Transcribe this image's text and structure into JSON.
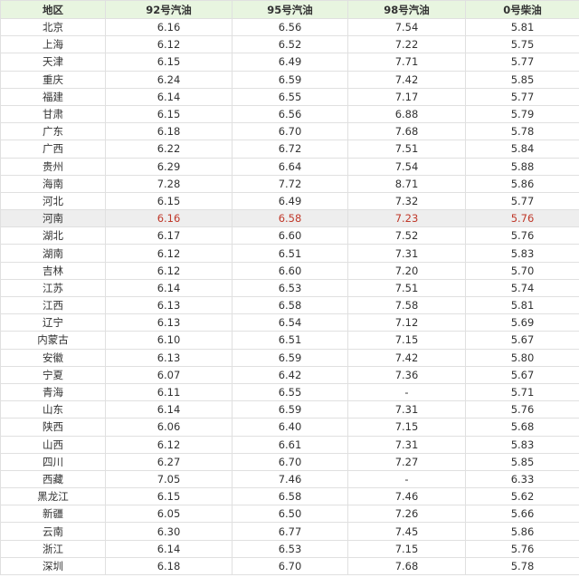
{
  "table": {
    "headers": [
      "地区",
      "92号汽油",
      "95号汽油",
      "98号汽油",
      "0号柴油"
    ],
    "highlight_color": "#c0392b",
    "header_bg": "#e8f5e0",
    "highlight_row": "河南",
    "rows": [
      {
        "region": "北京",
        "p92": "6.16",
        "p95": "6.56",
        "p98": "7.54",
        "p0": "5.81"
      },
      {
        "region": "上海",
        "p92": "6.12",
        "p95": "6.52",
        "p98": "7.22",
        "p0": "5.75"
      },
      {
        "region": "天津",
        "p92": "6.15",
        "p95": "6.49",
        "p98": "7.71",
        "p0": "5.77"
      },
      {
        "region": "重庆",
        "p92": "6.24",
        "p95": "6.59",
        "p98": "7.42",
        "p0": "5.85"
      },
      {
        "region": "福建",
        "p92": "6.14",
        "p95": "6.55",
        "p98": "7.17",
        "p0": "5.77"
      },
      {
        "region": "甘肃",
        "p92": "6.15",
        "p95": "6.56",
        "p98": "6.88",
        "p0": "5.79"
      },
      {
        "region": "广东",
        "p92": "6.18",
        "p95": "6.70",
        "p98": "7.68",
        "p0": "5.78"
      },
      {
        "region": "广西",
        "p92": "6.22",
        "p95": "6.72",
        "p98": "7.51",
        "p0": "5.84"
      },
      {
        "region": "贵州",
        "p92": "6.29",
        "p95": "6.64",
        "p98": "7.54",
        "p0": "5.88"
      },
      {
        "region": "海南",
        "p92": "7.28",
        "p95": "7.72",
        "p98": "8.71",
        "p0": "5.86"
      },
      {
        "region": "河北",
        "p92": "6.15",
        "p95": "6.49",
        "p98": "7.32",
        "p0": "5.77"
      },
      {
        "region": "河南",
        "p92": "6.16",
        "p95": "6.58",
        "p98": "7.23",
        "p0": "5.76"
      },
      {
        "region": "湖北",
        "p92": "6.17",
        "p95": "6.60",
        "p98": "7.52",
        "p0": "5.76"
      },
      {
        "region": "湖南",
        "p92": "6.12",
        "p95": "6.51",
        "p98": "7.31",
        "p0": "5.83"
      },
      {
        "region": "吉林",
        "p92": "6.12",
        "p95": "6.60",
        "p98": "7.20",
        "p0": "5.70"
      },
      {
        "region": "江苏",
        "p92": "6.14",
        "p95": "6.53",
        "p98": "7.51",
        "p0": "5.74"
      },
      {
        "region": "江西",
        "p92": "6.13",
        "p95": "6.58",
        "p98": "7.58",
        "p0": "5.81"
      },
      {
        "region": "辽宁",
        "p92": "6.13",
        "p95": "6.54",
        "p98": "7.12",
        "p0": "5.69"
      },
      {
        "region": "内蒙古",
        "p92": "6.10",
        "p95": "6.51",
        "p98": "7.15",
        "p0": "5.67"
      },
      {
        "region": "安徽",
        "p92": "6.13",
        "p95": "6.59",
        "p98": "7.42",
        "p0": "5.80"
      },
      {
        "region": "宁夏",
        "p92": "6.07",
        "p95": "6.42",
        "p98": "7.36",
        "p0": "5.67"
      },
      {
        "region": "青海",
        "p92": "6.11",
        "p95": "6.55",
        "p98": "-",
        "p0": "5.71"
      },
      {
        "region": "山东",
        "p92": "6.14",
        "p95": "6.59",
        "p98": "7.31",
        "p0": "5.76"
      },
      {
        "region": "陕西",
        "p92": "6.06",
        "p95": "6.40",
        "p98": "7.15",
        "p0": "5.68"
      },
      {
        "region": "山西",
        "p92": "6.12",
        "p95": "6.61",
        "p98": "7.31",
        "p0": "5.83"
      },
      {
        "region": "四川",
        "p92": "6.27",
        "p95": "6.70",
        "p98": "7.27",
        "p0": "5.85"
      },
      {
        "region": "西藏",
        "p92": "7.05",
        "p95": "7.46",
        "p98": "-",
        "p0": "6.33"
      },
      {
        "region": "黑龙江",
        "p92": "6.15",
        "p95": "6.58",
        "p98": "7.46",
        "p0": "5.62"
      },
      {
        "region": "新疆",
        "p92": "6.05",
        "p95": "6.50",
        "p98": "7.26",
        "p0": "5.66"
      },
      {
        "region": "云南",
        "p92": "6.30",
        "p95": "6.77",
        "p98": "7.45",
        "p0": "5.86"
      },
      {
        "region": "浙江",
        "p92": "6.14",
        "p95": "6.53",
        "p98": "7.15",
        "p0": "5.76"
      },
      {
        "region": "深圳",
        "p92": "6.18",
        "p95": "6.70",
        "p98": "7.68",
        "p0": "5.78"
      }
    ]
  }
}
